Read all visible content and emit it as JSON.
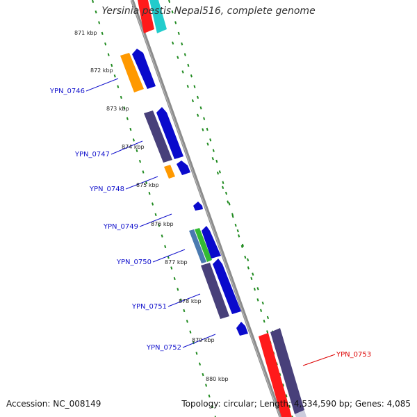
{
  "title": "Yersinia pestis Nepal516, complete genome",
  "footer": {
    "accession": "Accession: NC_008149",
    "summary": "Topology: circular; Length: 4,534,590 bp; Genes: 4,085"
  },
  "colors": {
    "backbone": "#8c8c8c",
    "ruler_ticks": "#1f8a1f",
    "label_blue": "#1010cc",
    "label_red": "#dd0000"
  },
  "ruler_labels": [
    "871 kbp",
    "872 kbp",
    "873 kbp",
    "874 kbp",
    "875 kbp",
    "876 kbp",
    "877 kbp",
    "878 kbp",
    "879 kbp",
    "880 kbp"
  ],
  "gene_labels": [
    {
      "text": "YPN_0746",
      "color": "#1010cc"
    },
    {
      "text": "YPN_0747",
      "color": "#1010cc"
    },
    {
      "text": "YPN_0748",
      "color": "#1010cc"
    },
    {
      "text": "YPN_0749",
      "color": "#1010cc"
    },
    {
      "text": "YPN_0750",
      "color": "#1010cc"
    },
    {
      "text": "YPN_0751",
      "color": "#1010cc"
    },
    {
      "text": "YPN_0752",
      "color": "#1010cc"
    },
    {
      "text": "YPN_0753",
      "color": "#dd0000"
    }
  ]
}
